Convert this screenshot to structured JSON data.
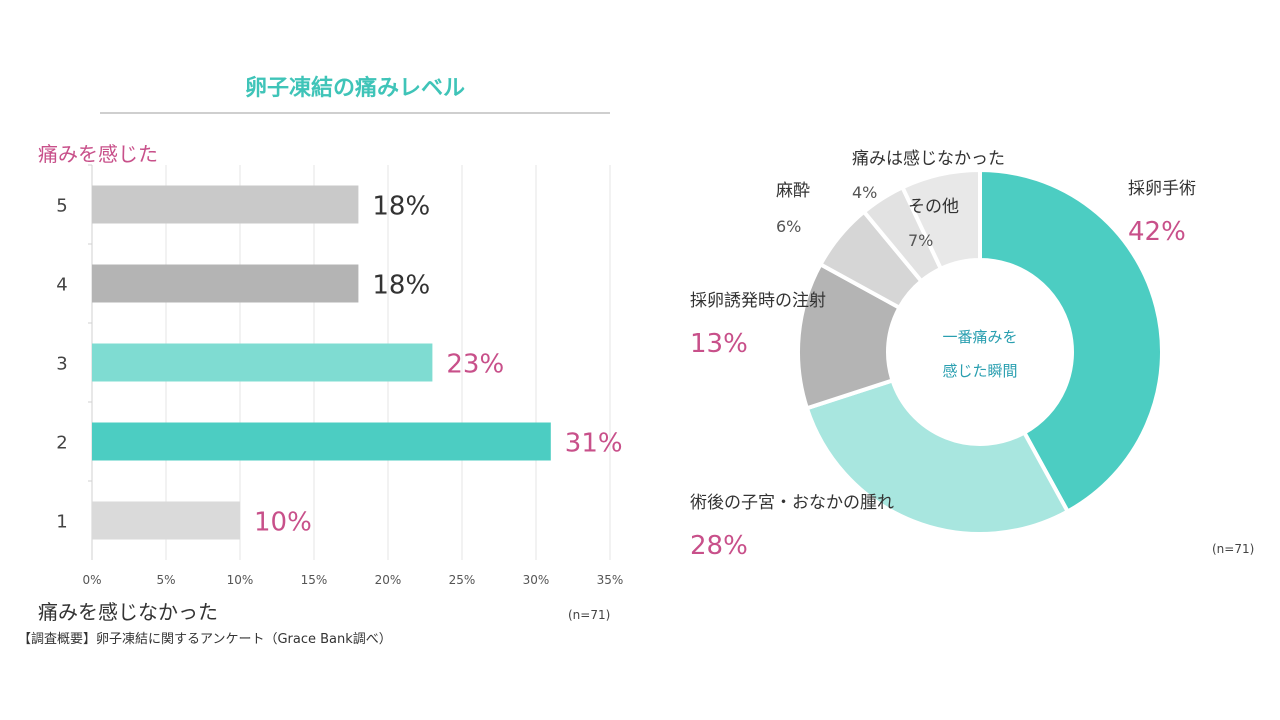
{
  "chart_data": [
    {
      "type": "bar",
      "orientation": "horizontal",
      "title": "卵子凍結の痛みレベル",
      "top_axis_label": "痛みを感じた",
      "bottom_axis_label": "痛みを感じなかった",
      "categories": [
        "5",
        "4",
        "3",
        "2",
        "1"
      ],
      "values": [
        18,
        18,
        23,
        31,
        10
      ],
      "value_labels": [
        "18%",
        "18%",
        "23%",
        "31%",
        "10%"
      ],
      "bar_colors": [
        "#c9c9c9",
        "#b4b4b4",
        "#7fdcd2",
        "#4ccdc2",
        "#dadada"
      ],
      "label_colors": [
        "#333333",
        "#333333",
        "#c8508a",
        "#c8508a",
        "#c8508a"
      ],
      "xlim": [
        0,
        35
      ],
      "xticks": [
        "0%",
        "5%",
        "10%",
        "15%",
        "20%",
        "25%",
        "30%",
        "35%"
      ],
      "grid": true,
      "note": "(n=71)"
    },
    {
      "type": "pie",
      "donut": true,
      "center_label": [
        "一番痛みを",
        "感じた瞬間"
      ],
      "slices": [
        {
          "label": "採卵手術",
          "value": 42,
          "value_label": "42%",
          "color": "#4ccdc2"
        },
        {
          "label": "術後の子宮・おなかの腫れ",
          "value": 28,
          "value_label": "28%",
          "color": "#a8e6df"
        },
        {
          "label": "採卵誘発時の注射",
          "value": 13,
          "value_label": "13%",
          "color": "#b4b4b4"
        },
        {
          "label": "麻酔",
          "value": 6,
          "value_label": "6%",
          "color": "#d6d6d6"
        },
        {
          "label": "痛みは感じなかった",
          "value": 4,
          "value_label": "4%",
          "color": "#e2e2e2"
        },
        {
          "label": "その他",
          "value": 7,
          "value_label": "7%",
          "color": "#e8e8e8"
        }
      ],
      "note": "(n=71)"
    }
  ],
  "survey_note": "【調査概要】卵子凍結に関するアンケート（Grace Bank調べ）"
}
